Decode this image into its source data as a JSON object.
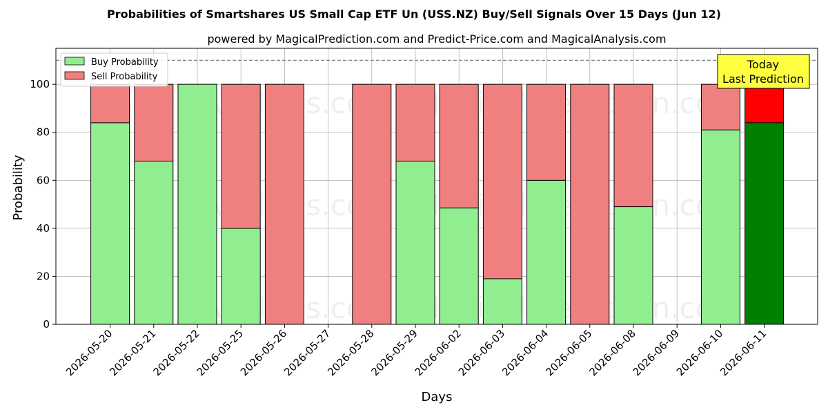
{
  "chart_data": {
    "type": "bar",
    "title": "Probabilities of Smartshares US Small Cap ETF Un (USS.NZ) Buy/Sell Signals Over 15 Days (Jun 12)",
    "subtitle": "powered by MagicalPrediction.com and Predict-Price.com and MagicalAnalysis.com",
    "xlabel": "Days",
    "ylabel": "Probability",
    "ylim": [
      0,
      115
    ],
    "yticks": [
      0,
      20,
      40,
      60,
      80,
      100
    ],
    "reference_line": 110,
    "grid": true,
    "legend_position": "top-left",
    "categories": [
      "2026-05-20",
      "2026-05-21",
      "2026-05-22",
      "2026-05-25",
      "2026-05-26",
      "2026-05-27",
      "2026-05-28",
      "2026-05-29",
      "2026-06-02",
      "2026-06-03",
      "2026-06-04",
      "2026-06-05",
      "2026-06-08",
      "2026-06-09",
      "2026-06-10",
      "2026-06-11"
    ],
    "series": [
      {
        "name": "Buy Probability",
        "color": "#90ee90",
        "values": [
          84,
          68,
          100,
          40,
          0,
          null,
          0,
          68,
          48.5,
          19,
          60,
          0,
          49,
          null,
          81,
          84
        ]
      },
      {
        "name": "Sell Probability",
        "color": "#f08080",
        "values": [
          16,
          32,
          0,
          60,
          100,
          null,
          100,
          32,
          51.5,
          81,
          40,
          100,
          51,
          null,
          19,
          16
        ]
      }
    ],
    "highlight": {
      "index": 15,
      "buy_color": "#008000",
      "sell_color": "#ff0000"
    },
    "annotation": {
      "lines": [
        "Today",
        "Last Prediction"
      ],
      "background": "#ffff40"
    },
    "watermarks": [
      "MagicalAnalysis.com",
      "MagicalPrediction.com"
    ]
  }
}
